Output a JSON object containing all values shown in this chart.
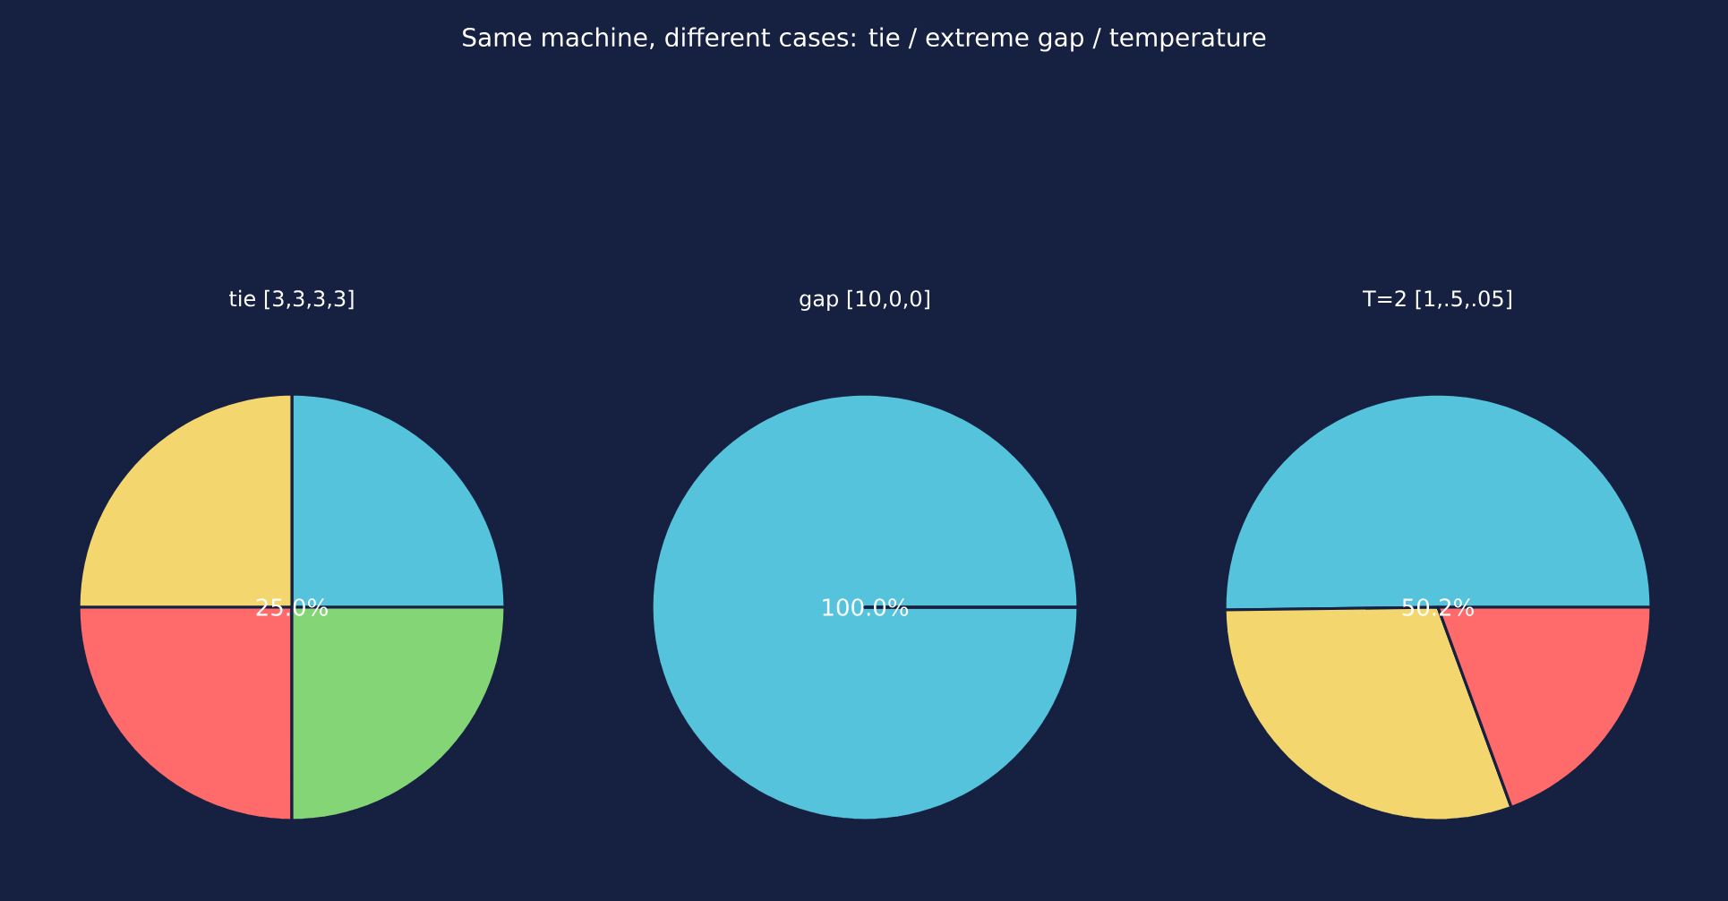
{
  "chart_data": [
    {
      "type": "pie",
      "title": "tie [3,3,3,3]",
      "annotations": [
        "Same machine, different cases: tie / extreme gap / temperature"
      ],
      "categories": [
        null,
        null,
        null,
        null
      ],
      "values": [
        25,
        25,
        25,
        25
      ],
      "colors": [
        "#56c3dc",
        "#f4d66e",
        "#ff6a6a",
        "#84d575"
      ],
      "value_labels": [
        "25.0%",
        null,
        null,
        null
      ]
    },
    {
      "type": "pie",
      "title": "gap [10,0,0]",
      "categories": [
        null,
        null,
        null
      ],
      "values": [
        100,
        0,
        0
      ],
      "colors": [
        "#56c3dc",
        "#f4d66e",
        "#ff6a6a"
      ],
      "value_labels": [
        "100.0%",
        null,
        null
      ]
    },
    {
      "type": "pie",
      "title": "T=2 [1,.5,.05]",
      "categories": [
        null,
        null,
        null
      ],
      "values": [
        50.2,
        30.4,
        19.4
      ],
      "colors": [
        "#56c3dc",
        "#f4d66e",
        "#ff6a6a"
      ],
      "value_labels": [
        "50.2%",
        null,
        null
      ]
    }
  ]
}
